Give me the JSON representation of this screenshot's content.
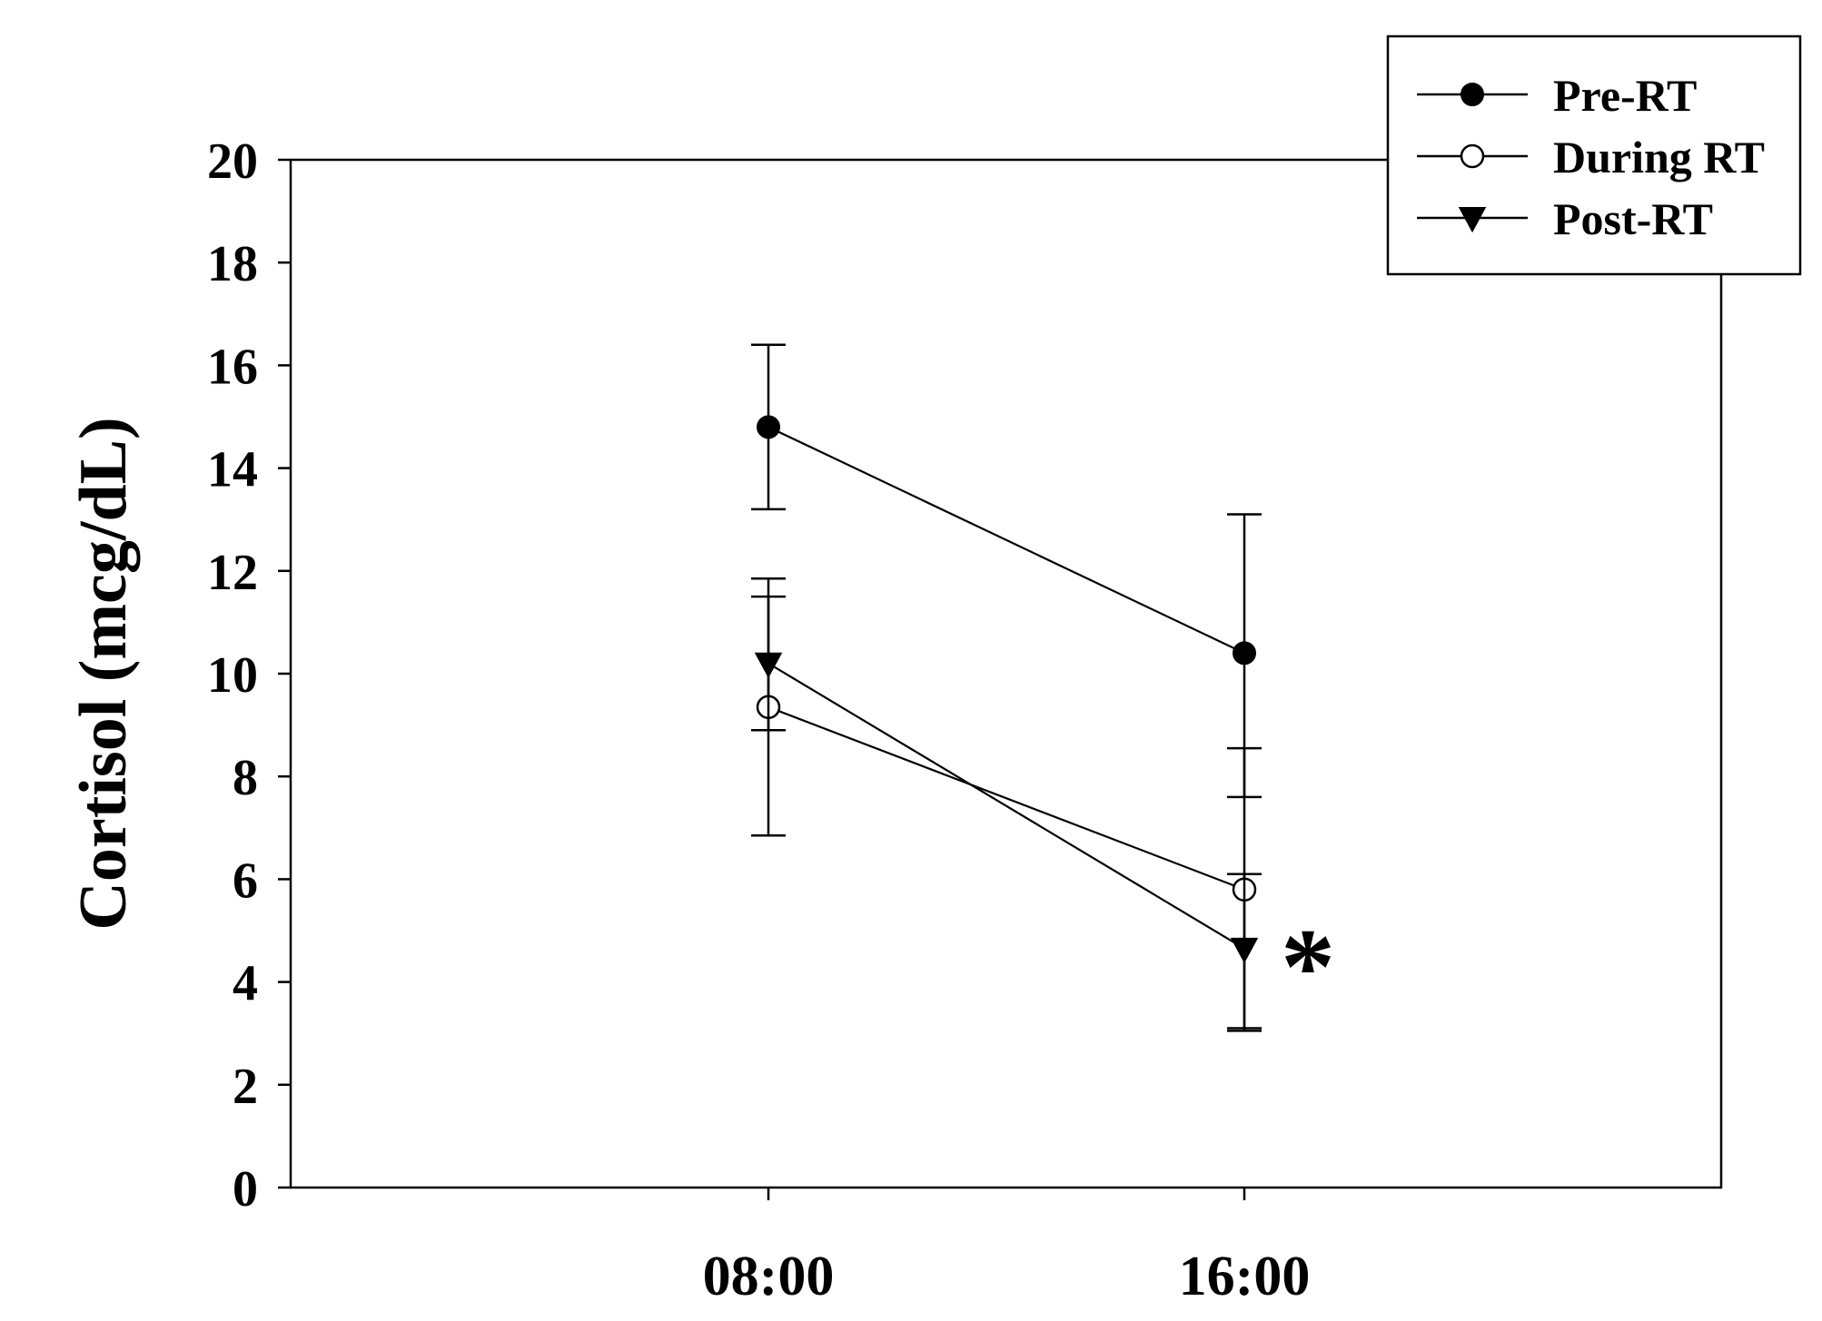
{
  "chart_data": {
    "type": "line",
    "title": "",
    "xlabel": "",
    "ylabel": "Cortisol (mcg/dL)",
    "categories": [
      "08:00",
      "16:00"
    ],
    "ylim": [
      0,
      20
    ],
    "yticks": [
      0,
      2,
      4,
      6,
      8,
      10,
      12,
      14,
      16,
      18,
      20
    ],
    "grid": false,
    "legend_position": "top-right",
    "series": [
      {
        "name": "Pre-RT",
        "marker": "filled-circle",
        "values": [
          14.8,
          10.4
        ],
        "error": [
          [
            13.2,
            16.4
          ],
          [
            7.6,
            13.1
          ]
        ]
      },
      {
        "name": "During RT",
        "marker": "open-circle",
        "values": [
          9.35,
          5.8
        ],
        "error": [
          [
            6.85,
            11.85
          ],
          [
            3.1,
            8.55
          ]
        ]
      },
      {
        "name": "Post-RT",
        "marker": "filled-triangle-down",
        "values": [
          10.2,
          4.65
        ],
        "error": [
          [
            8.9,
            11.5
          ],
          [
            3.05,
            6.1
          ]
        ]
      }
    ],
    "annotations": [
      {
        "text": "*",
        "series": "Post-RT",
        "category": "16:00"
      }
    ]
  }
}
